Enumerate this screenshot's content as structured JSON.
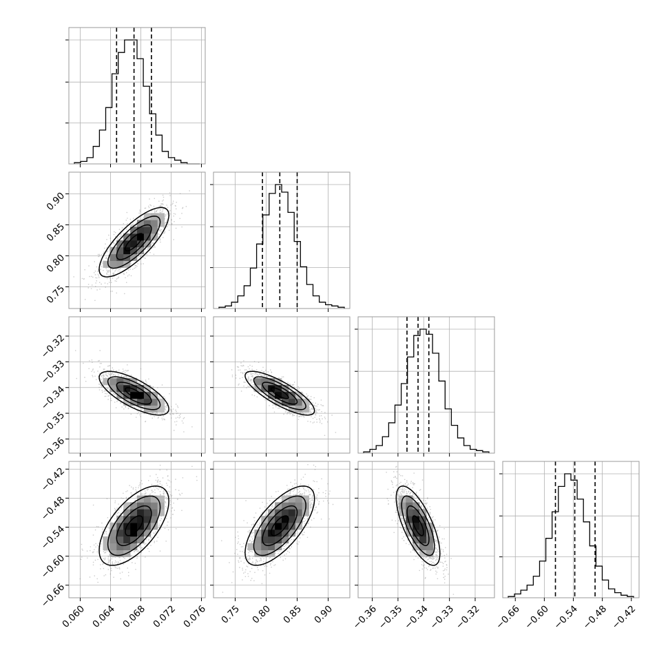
{
  "chart_data": {
    "type": "corner",
    "title": "",
    "grid": true,
    "parameters": [
      {
        "range": [
          0.0585,
          0.0765
        ],
        "ticks": [
          0.06,
          0.064,
          0.068,
          0.072,
          0.076
        ],
        "tick_labels": [
          "0.060",
          "0.064",
          "0.068",
          "0.072",
          "0.076"
        ],
        "quantiles": [
          0.0648,
          0.0671,
          0.0694
        ],
        "histogram": [
          1,
          2,
          5,
          14,
          27,
          45,
          72,
          89,
          99,
          99,
          84,
          62,
          40,
          23,
          10,
          5,
          3,
          1,
          0,
          0
        ]
      },
      {
        "range": [
          0.715,
          0.935
        ],
        "ticks": [
          0.75,
          0.8,
          0.85,
          0.9
        ],
        "tick_labels": [
          "0.75",
          "0.80",
          "0.85",
          "0.90"
        ],
        "quantiles": [
          0.794,
          0.822,
          0.85
        ],
        "histogram": [
          1,
          2,
          5,
          10,
          18,
          32,
          51,
          74,
          91,
          98,
          92,
          76,
          53,
          33,
          19,
          10,
          5,
          3,
          2,
          1
        ]
      },
      {
        "range": [
          -0.3655,
          -0.3125
        ],
        "ticks": [
          -0.36,
          -0.35,
          -0.34,
          -0.33,
          -0.32
        ],
        "tick_labels": [
          "−0.36",
          "−0.35",
          "−0.34",
          "−0.33",
          "−0.32"
        ],
        "quantiles": [
          -0.3465,
          -0.3422,
          -0.338
        ],
        "histogram": [
          1,
          3,
          6,
          13,
          24,
          38,
          55,
          76,
          93,
          98,
          94,
          79,
          57,
          35,
          22,
          12,
          6,
          3,
          2,
          1
        ]
      },
      {
        "range": [
          -0.686,
          -0.404
        ],
        "ticks": [
          -0.66,
          -0.6,
          -0.54,
          -0.48,
          -0.42
        ],
        "tick_labels": [
          "−0.66",
          "−0.60",
          "−0.54",
          "−0.48",
          "−0.42"
        ],
        "quantiles": [
          -0.577,
          -0.537,
          -0.495
        ],
        "histogram": [
          1,
          3,
          6,
          10,
          17,
          29,
          47,
          68,
          88,
          98,
          93,
          78,
          60,
          41,
          25,
          14,
          7,
          4,
          2,
          1
        ]
      }
    ],
    "pairs": [
      {
        "row": 1,
        "col": 0,
        "center": [
          0.0671,
          0.822
        ],
        "corr": 0.78
      },
      {
        "row": 2,
        "col": 0,
        "center": [
          0.0671,
          -0.3422
        ],
        "corr": -0.72
      },
      {
        "row": 2,
        "col": 1,
        "center": [
          0.822,
          -0.3422
        ],
        "corr": -0.8
      },
      {
        "row": 3,
        "col": 0,
        "center": [
          0.0671,
          -0.537
        ],
        "corr": 0.62
      },
      {
        "row": 3,
        "col": 1,
        "center": [
          0.822,
          -0.537
        ],
        "corr": 0.68
      },
      {
        "row": 3,
        "col": 2,
        "center": [
          -0.3422,
          -0.537
        ],
        "corr": -0.7
      }
    ],
    "contour_levels_sigma": [
      0.5,
      1.0,
      1.5,
      2.0
    ]
  }
}
